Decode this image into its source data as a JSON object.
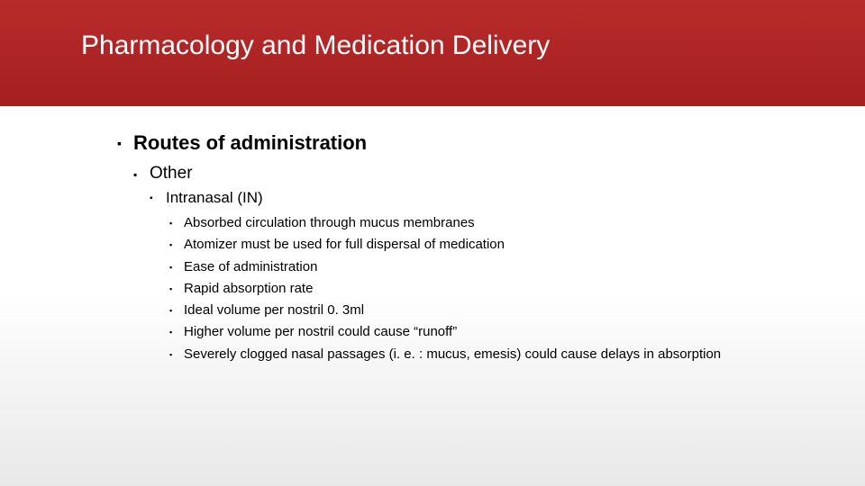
{
  "header": {
    "title": "Pharmacology and Medication Delivery",
    "background_gradient_top": "#b82b2b",
    "background_gradient_bottom": "#a51f1f",
    "title_color": "#ffffff",
    "title_fontsize": 30
  },
  "body": {
    "background_gradient_top": "#ffffff",
    "background_gradient_bottom": "#e8e8e8",
    "text_color": "#000000"
  },
  "outline": {
    "level1": {
      "text": "Routes of administration",
      "fontsize": 22,
      "bold": true
    },
    "level2": {
      "text": "Other",
      "fontsize": 19
    },
    "level3": {
      "text": "Intranasal (IN)",
      "fontsize": 17
    },
    "level4": {
      "fontsize": 15,
      "items": [
        "Absorbed circulation through mucus membranes",
        "Atomizer must be used for full dispersal of medication",
        " Ease of administration",
        "Rapid absorption rate",
        "Ideal volume per nostril 0. 3ml",
        "Higher volume per nostril could cause “runoff”",
        "Severely clogged nasal passages (i. e. : mucus, emesis) could cause delays in absorption"
      ]
    }
  },
  "bullet_style": {
    "marker": "▪",
    "color": "#000000"
  }
}
